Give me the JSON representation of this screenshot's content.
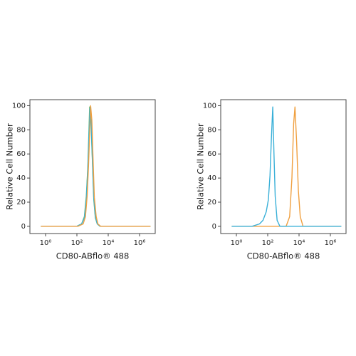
{
  "chart_data": [
    {
      "type": "line",
      "xlabel": "CD80-ABflo® 488",
      "ylabel": "Relative Cell Number",
      "xscale": "log",
      "xlim": [
        0.1,
        10000000
      ],
      "ylim": [
        -6,
        105
      ],
      "xticks": [
        {
          "value": 1,
          "label": "10⁰"
        },
        {
          "value": 100,
          "label": "10²"
        },
        {
          "value": 10000,
          "label": "10⁴"
        },
        {
          "value": 1000000,
          "label": "10⁶"
        }
      ],
      "yticks": [
        0,
        20,
        40,
        60,
        80,
        100
      ],
      "series": [
        {
          "color": "#6cbf6a",
          "x": [
            0.5,
            100,
            200,
            300,
            400,
            500,
            650,
            800,
            1000,
            1200,
            1500,
            2000,
            3000,
            5000000
          ],
          "values": [
            0,
            0,
            2,
            8,
            25,
            50,
            99,
            85,
            50,
            22,
            7,
            2,
            0,
            0
          ]
        },
        {
          "color": "#3ab0d8",
          "x": [
            0.5,
            100,
            200,
            300,
            400,
            500,
            680,
            800,
            1000,
            1200,
            1500,
            2000,
            3000,
            5000000
          ],
          "values": [
            0,
            0,
            2,
            7,
            22,
            48,
            98,
            88,
            52,
            24,
            8,
            2,
            0,
            0
          ]
        },
        {
          "color": "#f0a040",
          "x": [
            0.5,
            120,
            250,
            350,
            450,
            550,
            750,
            900,
            1100,
            1300,
            1700,
            2200,
            3300,
            5000000
          ],
          "values": [
            0,
            0,
            2,
            8,
            25,
            50,
            100,
            88,
            52,
            24,
            8,
            2,
            0,
            0
          ]
        }
      ]
    },
    {
      "type": "line",
      "xlabel": "CD80-ABflo® 488",
      "ylabel": "Relative Cell Number",
      "xscale": "log",
      "xlim": [
        0.1,
        10000000
      ],
      "ylim": [
        -6,
        105
      ],
      "xticks": [
        {
          "value": 1,
          "label": "10⁰"
        },
        {
          "value": 100,
          "label": "10²"
        },
        {
          "value": 10000,
          "label": "10⁴"
        },
        {
          "value": 1000000,
          "label": "10⁶"
        }
      ],
      "yticks": [
        0,
        20,
        40,
        60,
        80,
        100
      ],
      "series": [
        {
          "color": "#f0a040",
          "x": [
            0.5,
            1500,
            2500,
            3500,
            4500,
            5500,
            7000,
            9000,
            12000,
            18000,
            5000000
          ],
          "values": [
            0,
            0,
            8,
            40,
            85,
            99,
            70,
            30,
            8,
            0,
            0
          ]
        },
        {
          "color": "#3ab0d8",
          "x": [
            0.5,
            10,
            30,
            50,
            80,
            110,
            140,
            170,
            210,
            250,
            300,
            400,
            600,
            5000000
          ],
          "values": [
            0,
            0,
            2,
            5,
            12,
            22,
            42,
            72,
            99,
            60,
            25,
            5,
            0,
            0
          ]
        }
      ]
    }
  ]
}
